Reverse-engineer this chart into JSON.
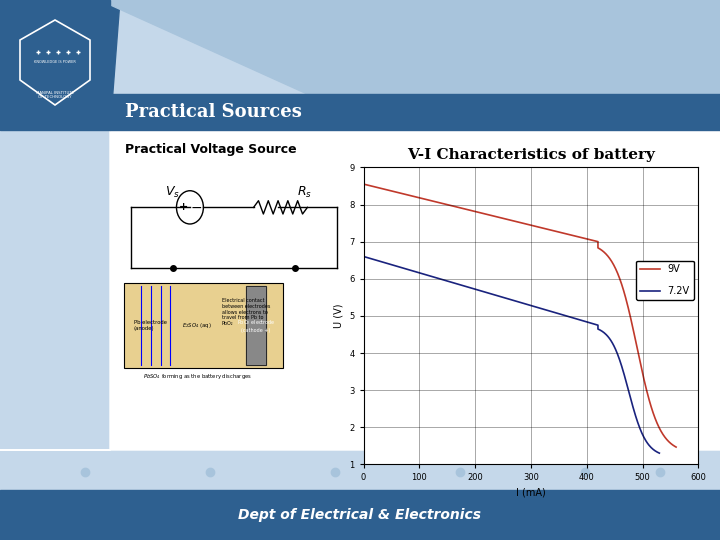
{
  "title": "V-I Characteristics of battery",
  "xlabel": "I (mA)",
  "ylabel": "U (V)",
  "xlim": [
    0,
    600
  ],
  "ylim": [
    1,
    9
  ],
  "xticks": [
    0,
    100,
    200,
    300,
    400,
    500,
    600
  ],
  "yticks": [
    1,
    2,
    3,
    4,
    5,
    6,
    7,
    8,
    9
  ],
  "series": [
    {
      "label": "9V",
      "color": "#c0392b",
      "start_voltage": 8.55,
      "flat_end_current": 420,
      "flat_end_voltage": 7.0,
      "drop_end_current": 560,
      "drop_end_voltage": 1.3
    },
    {
      "label": "7.2V",
      "color": "#1a237e",
      "start_voltage": 6.6,
      "flat_end_current": 420,
      "flat_end_voltage": 4.75,
      "drop_end_current": 530,
      "drop_end_voltage": 1.2
    }
  ],
  "bg_light_blue": "#c5d8ea",
  "bg_white": "#ffffff",
  "header_dark_blue": "#2e6090",
  "header_mid_blue": "#a8c4dc",
  "title_bar_blue": "#2e6090",
  "footer_blue": "#2e6090",
  "slide_title": "Practical Sources",
  "subtitle": "Practical Voltage Source",
  "dept_text": "Dept of Electrical & Electronics",
  "plot_bg": "#ffffff",
  "grid_color": "#555555",
  "chart_title_fontsize": 11,
  "axis_label_fontsize": 7,
  "tick_fontsize": 6,
  "legend_fontsize": 7
}
